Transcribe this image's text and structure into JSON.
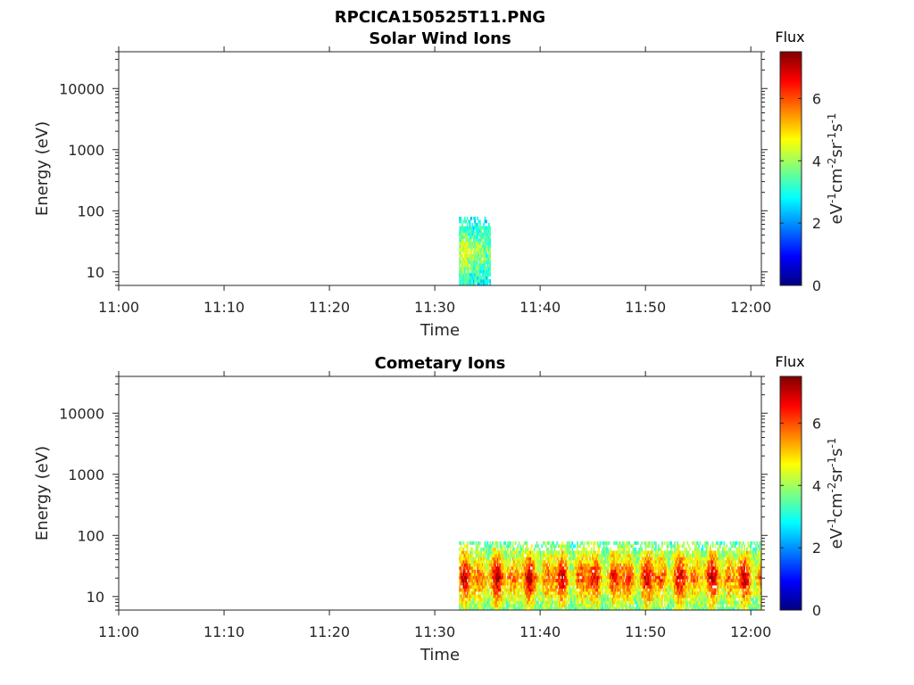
{
  "figure_title": "RPCICA150525T11.PNG",
  "chart_data": [
    {
      "type": "heatmap",
      "title": "Solar Wind Ions",
      "xlabel": "Time",
      "ylabel": "Energy (eV)",
      "x_ticks": [
        "11:00",
        "11:10",
        "11:20",
        "11:30",
        "11:40",
        "11:50",
        "12:00"
      ],
      "y_ticks": [
        "10",
        "100",
        "1000",
        "10000"
      ],
      "y_scale": "log",
      "ylim": [
        6,
        40000
      ],
      "xlim_minutes": [
        0,
        61
      ],
      "colorbar": {
        "title": "Flux",
        "label": "eV-1cm-2sr-1s-1",
        "ticks": [
          "0",
          "2",
          "4",
          "6"
        ],
        "range": [
          0,
          7.5
        ],
        "colormap": "jet"
      },
      "data_regions": [
        {
          "t_start": 32.3,
          "t_end": 35.3,
          "e_min": 6,
          "e_max": 80,
          "flux_typical": 3.5,
          "flux_max": 4.8
        }
      ]
    },
    {
      "type": "heatmap",
      "title": "Cometary Ions",
      "xlabel": "Time",
      "ylabel": "Energy (eV)",
      "x_ticks": [
        "11:00",
        "11:10",
        "11:20",
        "11:30",
        "11:40",
        "11:50",
        "12:00"
      ],
      "y_ticks": [
        "10",
        "100",
        "1000",
        "10000"
      ],
      "y_scale": "log",
      "ylim": [
        6,
        40000
      ],
      "xlim_minutes": [
        0,
        61
      ],
      "colorbar": {
        "title": "Flux",
        "label": "eV-1cm-2sr-1s-1",
        "ticks": [
          "0",
          "2",
          "4",
          "6"
        ],
        "range": [
          0,
          7.5
        ],
        "colormap": "jet"
      },
      "data_regions": [
        {
          "t_start": 32.3,
          "t_end": 61,
          "e_min": 6,
          "e_max": 80,
          "flux_typical": 4.5,
          "flux_max": 7.3
        }
      ]
    }
  ]
}
